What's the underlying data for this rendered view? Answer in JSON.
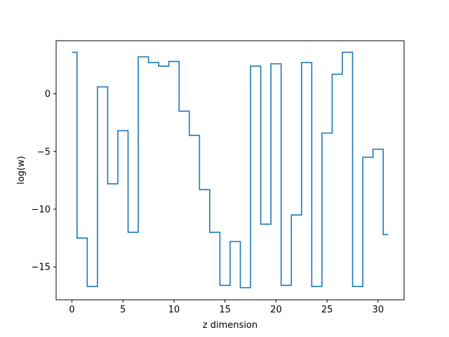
{
  "chart_data": {
    "type": "line",
    "drawstyle": "steps-mid",
    "title": "",
    "xlabel": "z dimension",
    "ylabel": "log(w)",
    "xlim": [
      -1.55,
      32.55
    ],
    "ylim": [
      -17.85,
      4.6
    ],
    "xticks": [
      0,
      5,
      10,
      15,
      20,
      25,
      30
    ],
    "yticks": [
      0,
      -5,
      -10,
      -15
    ],
    "ytick_labels": [
      "0",
      "−5",
      "−10",
      "−15"
    ],
    "grid": false,
    "color": "#1f77b4",
    "series": [
      {
        "x": [
          0,
          1,
          2,
          3,
          4,
          5,
          6,
          7,
          8,
          9,
          10,
          11,
          12,
          13,
          14,
          15,
          16,
          17,
          18,
          19,
          20,
          21,
          22,
          23,
          24,
          25,
          26,
          27,
          28,
          29,
          30,
          31
        ],
        "y": [
          3.6,
          -12.5,
          -16.7,
          0.6,
          -7.8,
          -3.2,
          -12.0,
          3.2,
          2.7,
          2.4,
          2.8,
          -1.5,
          -3.6,
          -8.3,
          -12.0,
          -16.6,
          -12.8,
          -16.8,
          2.4,
          -11.3,
          2.6,
          -16.6,
          -10.5,
          2.7,
          -16.7,
          -3.4,
          1.7,
          3.6,
          -16.7,
          -5.5,
          -4.8,
          -12.2
        ]
      }
    ]
  }
}
